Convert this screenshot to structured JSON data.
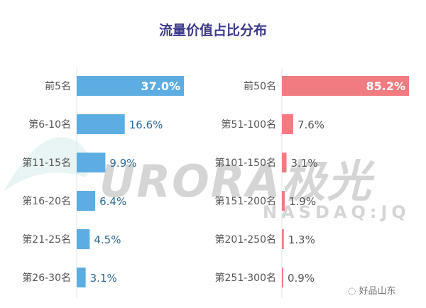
{
  "chart_data": [
    {
      "type": "bar",
      "orientation": "horizontal",
      "categories": [
        "前5名",
        "第6-10名",
        "第11-15名",
        "第16-20名",
        "第21-25名",
        "第26-30名"
      ],
      "values": [
        37.0,
        16.6,
        9.9,
        6.4,
        4.5,
        3.1
      ],
      "labels": [
        "37.0%",
        "16.6%",
        "9.9%",
        "6.4%",
        "4.5%",
        "3.1%"
      ],
      "color": "#5dade2"
    },
    {
      "type": "bar",
      "orientation": "horizontal",
      "categories": [
        "前50名",
        "第51-100名",
        "第101-150名",
        "第151-200名",
        "第201-250名",
        "第251-300名"
      ],
      "values": [
        85.2,
        7.6,
        3.1,
        1.9,
        1.3,
        0.9
      ],
      "labels": [
        "85.2%",
        "7.6%",
        "3.1%",
        "1.9%",
        "1.3%",
        "0.9%"
      ],
      "color": "#f07b80"
    }
  ],
  "title": "流量价值占比分布",
  "watermark": {
    "brand": "URORA极光",
    "ticker": "NASDAQ:JQ",
    "source": "好品山东"
  }
}
